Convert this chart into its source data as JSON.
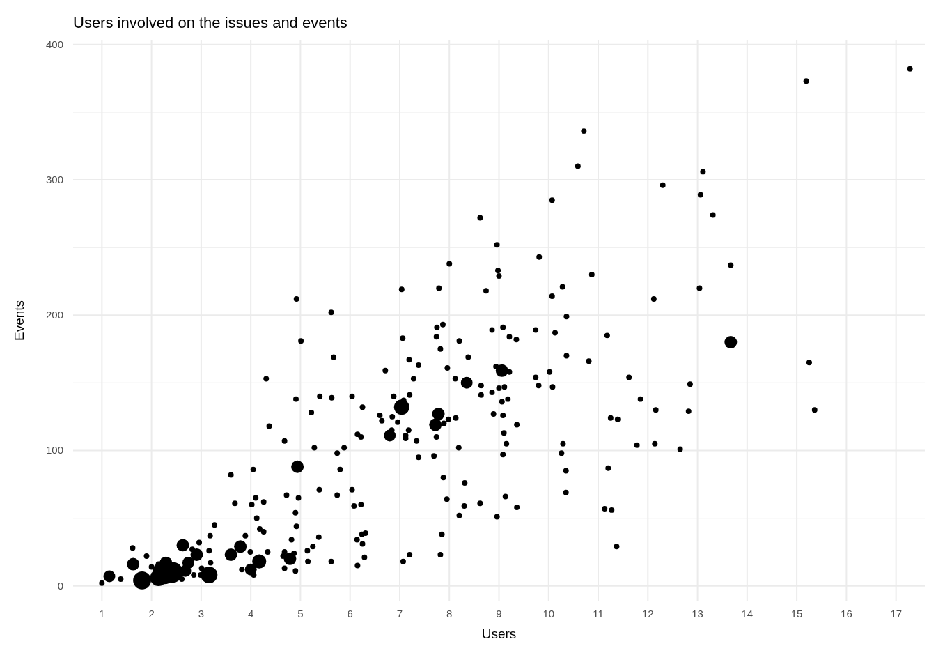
{
  "chart_data": {
    "type": "bubble",
    "title": "Users involved on the issues and events",
    "xlabel": "Users",
    "ylabel": "Events",
    "color": "#000000",
    "grid": true,
    "xlim": [
      0.42,
      17.58
    ],
    "ylim": [
      -11,
      403
    ],
    "xticks": [
      1,
      2,
      3,
      4,
      5,
      6,
      7,
      8,
      9,
      10,
      11,
      12,
      13,
      14,
      15,
      16,
      17
    ],
    "yticks": [
      0,
      {
        "value": 50,
        "label": null
      },
      100,
      {
        "value": 150,
        "label": null
      },
      200,
      {
        "value": 250,
        "label": null
      },
      300,
      {
        "value": 350,
        "label": null
      },
      400
    ],
    "x": [
      17.28,
      15.19,
      10.71,
      10.59,
      13.11,
      12.3,
      13.06,
      10.07,
      13.31,
      8.62,
      8.96,
      9.81,
      8.0,
      13.67,
      8.98,
      10.87,
      9.0,
      10.28,
      13.04,
      7.79,
      7.04,
      8.74,
      10.07,
      12.12,
      4.92,
      5.62,
      10.36,
      7.87,
      7.75,
      9.08,
      8.86,
      9.74,
      10.13,
      7.06,
      9.21,
      7.74,
      9.35,
      8.2,
      5.01,
      11.18,
      13.67,
      7.82,
      8.38,
      5.67,
      10.36,
      7.19,
      10.81,
      15.25,
      7.38,
      7.96,
      8.94,
      9.06,
      6.71,
      9.21,
      10.02,
      11.62,
      4.31,
      7.28,
      8.12,
      9.74,
      8.35,
      12.85,
      8.64,
      9.8,
      10.08,
      9.11,
      9.0,
      8.86,
      8.64,
      7.2,
      5.39,
      6.04,
      6.88,
      4.91,
      5.63,
      11.85,
      9.18,
      9.06,
      7.08,
      7.04,
      6.25,
      12.16,
      15.36,
      5.22,
      7.78,
      8.89,
      12.82,
      6.6,
      9.08,
      6.85,
      11.25,
      8.13,
      11.39,
      7.98,
      6.64,
      6.96,
      7.89,
      7.72,
      9.36,
      4.37,
      7.18,
      6.84,
      9.1,
      6.15,
      6.8,
      7.74,
      6.22,
      7.12,
      7.12,
      7.34,
      4.68,
      10.29,
      9.15,
      12.14,
      11.78,
      5.88,
      5.28,
      8.19,
      12.65,
      10.26,
      5.74,
      9.08,
      7.38,
      7.69,
      4.94,
      11.2,
      4.05,
      5.8,
      10.35,
      3.6,
      7.88,
      8.31,
      6.04,
      5.38,
      10.35,
      4.72,
      5.74,
      4.96,
      4.1,
      9.13,
      7.95,
      4.26,
      8.62,
      3.68,
      4.02,
      6.22,
      6.08,
      8.3,
      9.36,
      11.13,
      11.27,
      4.9,
      8.2,
      8.96,
      4.12,
      3.27,
      4.92,
      4.18,
      4.26,
      6.31,
      6.24,
      3.18,
      3.89,
      7.85,
      5.37,
      6.14,
      4.82,
      2.96,
      6.25,
      11.37,
      5.25,
      2.63,
      3.79,
      1.62,
      3.6,
      2.82,
      3.16,
      3.99,
      4.34,
      4.68,
      4.87,
      2.91,
      7.2,
      7.82,
      1.9,
      5.14,
      4.65,
      6.29,
      4.17,
      5.62,
      5.15,
      4.79,
      7.07,
      1.63,
      2.14,
      2.29,
      2.74,
      3.19,
      2.0,
      3.01,
      4.0,
      6.15,
      3.82,
      4.9,
      4.68,
      2.68,
      4.06,
      1.15,
      2.42,
      3.16,
      2.99,
      2.61,
      2.14,
      1.81,
      1.38,
      2.26,
      1.0,
      2.85
    ],
    "values": [
      382,
      373,
      336,
      310,
      306,
      296,
      289,
      285,
      274,
      272,
      252,
      243,
      238,
      237,
      233,
      230,
      229,
      221,
      220,
      220,
      219,
      218,
      214,
      212,
      212,
      202,
      199,
      193,
      191,
      191,
      189,
      189,
      187,
      183,
      184,
      184,
      182,
      181,
      181,
      185,
      180,
      175,
      169,
      169,
      170,
      167,
      166,
      165,
      163,
      161,
      162,
      159,
      159,
      158,
      158,
      154,
      153,
      153,
      153,
      154,
      150,
      149,
      148,
      148,
      147,
      147,
      146,
      143,
      141,
      141,
      140,
      140,
      140,
      138,
      139,
      138,
      138,
      136,
      137,
      132,
      132,
      130,
      130,
      128,
      127,
      127,
      129,
      126,
      126,
      125,
      124,
      124,
      123,
      123,
      122,
      121,
      120,
      119,
      119,
      118,
      115,
      115,
      113,
      112,
      111,
      110,
      110,
      109,
      111,
      107,
      107,
      105,
      105,
      105,
      104,
      102,
      102,
      102,
      101,
      98,
      98,
      97,
      95,
      96,
      88,
      87,
      86,
      86,
      85,
      82,
      80,
      76,
      71,
      71,
      69,
      67,
      67,
      65,
      65,
      66,
      64,
      62,
      61,
      61,
      60,
      60,
      59,
      59,
      58,
      57,
      56,
      54,
      52,
      51,
      50,
      45,
      44,
      42,
      40,
      39,
      38,
      37,
      37,
      38,
      36,
      34,
      34,
      32,
      31,
      29,
      29,
      30,
      29,
      28,
      23,
      27,
      26,
      25,
      25,
      25,
      24,
      23,
      23,
      23,
      22,
      26,
      22,
      21,
      18,
      18,
      18,
      20,
      18,
      16,
      16,
      17,
      17,
      17,
      14,
      13,
      12,
      15,
      12,
      11,
      13,
      11,
      8,
      7,
      10,
      8,
      8,
      5,
      6,
      4,
      5,
      10,
      2,
      8
    ],
    "sizes": [
      0.055,
      0.055,
      0.055,
      0.055,
      0.055,
      0.055,
      0.055,
      0.055,
      0.055,
      0.055,
      0.055,
      0.055,
      0.055,
      0.055,
      0.055,
      0.055,
      0.055,
      0.055,
      0.055,
      0.055,
      0.055,
      0.055,
      0.055,
      0.055,
      0.055,
      0.055,
      0.055,
      0.055,
      0.055,
      0.055,
      0.055,
      0.055,
      0.055,
      0.055,
      0.055,
      0.055,
      0.055,
      0.055,
      0.055,
      0.055,
      0.28,
      0.055,
      0.055,
      0.055,
      0.055,
      0.055,
      0.055,
      0.055,
      0.055,
      0.055,
      0.055,
      0.28,
      0.055,
      0.055,
      0.055,
      0.055,
      0.055,
      0.055,
      0.055,
      0.055,
      0.25,
      0.055,
      0.055,
      0.055,
      0.055,
      0.055,
      0.055,
      0.055,
      0.055,
      0.055,
      0.055,
      0.055,
      0.055,
      0.055,
      0.055,
      0.055,
      0.055,
      0.055,
      0.055,
      0.42,
      0.055,
      0.055,
      0.055,
      0.055,
      0.28,
      0.055,
      0.055,
      0.055,
      0.055,
      0.055,
      0.055,
      0.055,
      0.055,
      0.055,
      0.055,
      0.055,
      0.055,
      0.28,
      0.055,
      0.055,
      0.055,
      0.055,
      0.055,
      0.055,
      0.25,
      0.055,
      0.055,
      0.055,
      0.055,
      0.055,
      0.055,
      0.055,
      0.055,
      0.055,
      0.055,
      0.055,
      0.055,
      0.055,
      0.055,
      0.055,
      0.055,
      0.055,
      0.055,
      0.055,
      0.28,
      0.055,
      0.055,
      0.055,
      0.055,
      0.055,
      0.055,
      0.055,
      0.055,
      0.055,
      0.055,
      0.055,
      0.055,
      0.055,
      0.055,
      0.055,
      0.055,
      0.055,
      0.055,
      0.055,
      0.055,
      0.055,
      0.055,
      0.055,
      0.055,
      0.055,
      0.055,
      0.055,
      0.055,
      0.055,
      0.055,
      0.055,
      0.055,
      0.055,
      0.055,
      0.055,
      0.055,
      0.055,
      0.055,
      0.055,
      0.055,
      0.055,
      0.055,
      0.055,
      0.055,
      0.055,
      0.055,
      0.28,
      0.28,
      0.055,
      0.28,
      0.055,
      0.055,
      0.055,
      0.055,
      0.055,
      0.055,
      0.28,
      0.055,
      0.055,
      0.055,
      0.055,
      0.055,
      0.055,
      0.35,
      0.055,
      0.055,
      0.28,
      0.055,
      0.28,
      0.055,
      0.28,
      0.25,
      0.055,
      0.055,
      0.055,
      0.25,
      0.055,
      0.055,
      0.055,
      0.055,
      0.25,
      0.055,
      0.25,
      0.78,
      0.5,
      0.055,
      0.055,
      0.5,
      0.58,
      0.055,
      1,
      0.055,
      0.055
    ]
  }
}
